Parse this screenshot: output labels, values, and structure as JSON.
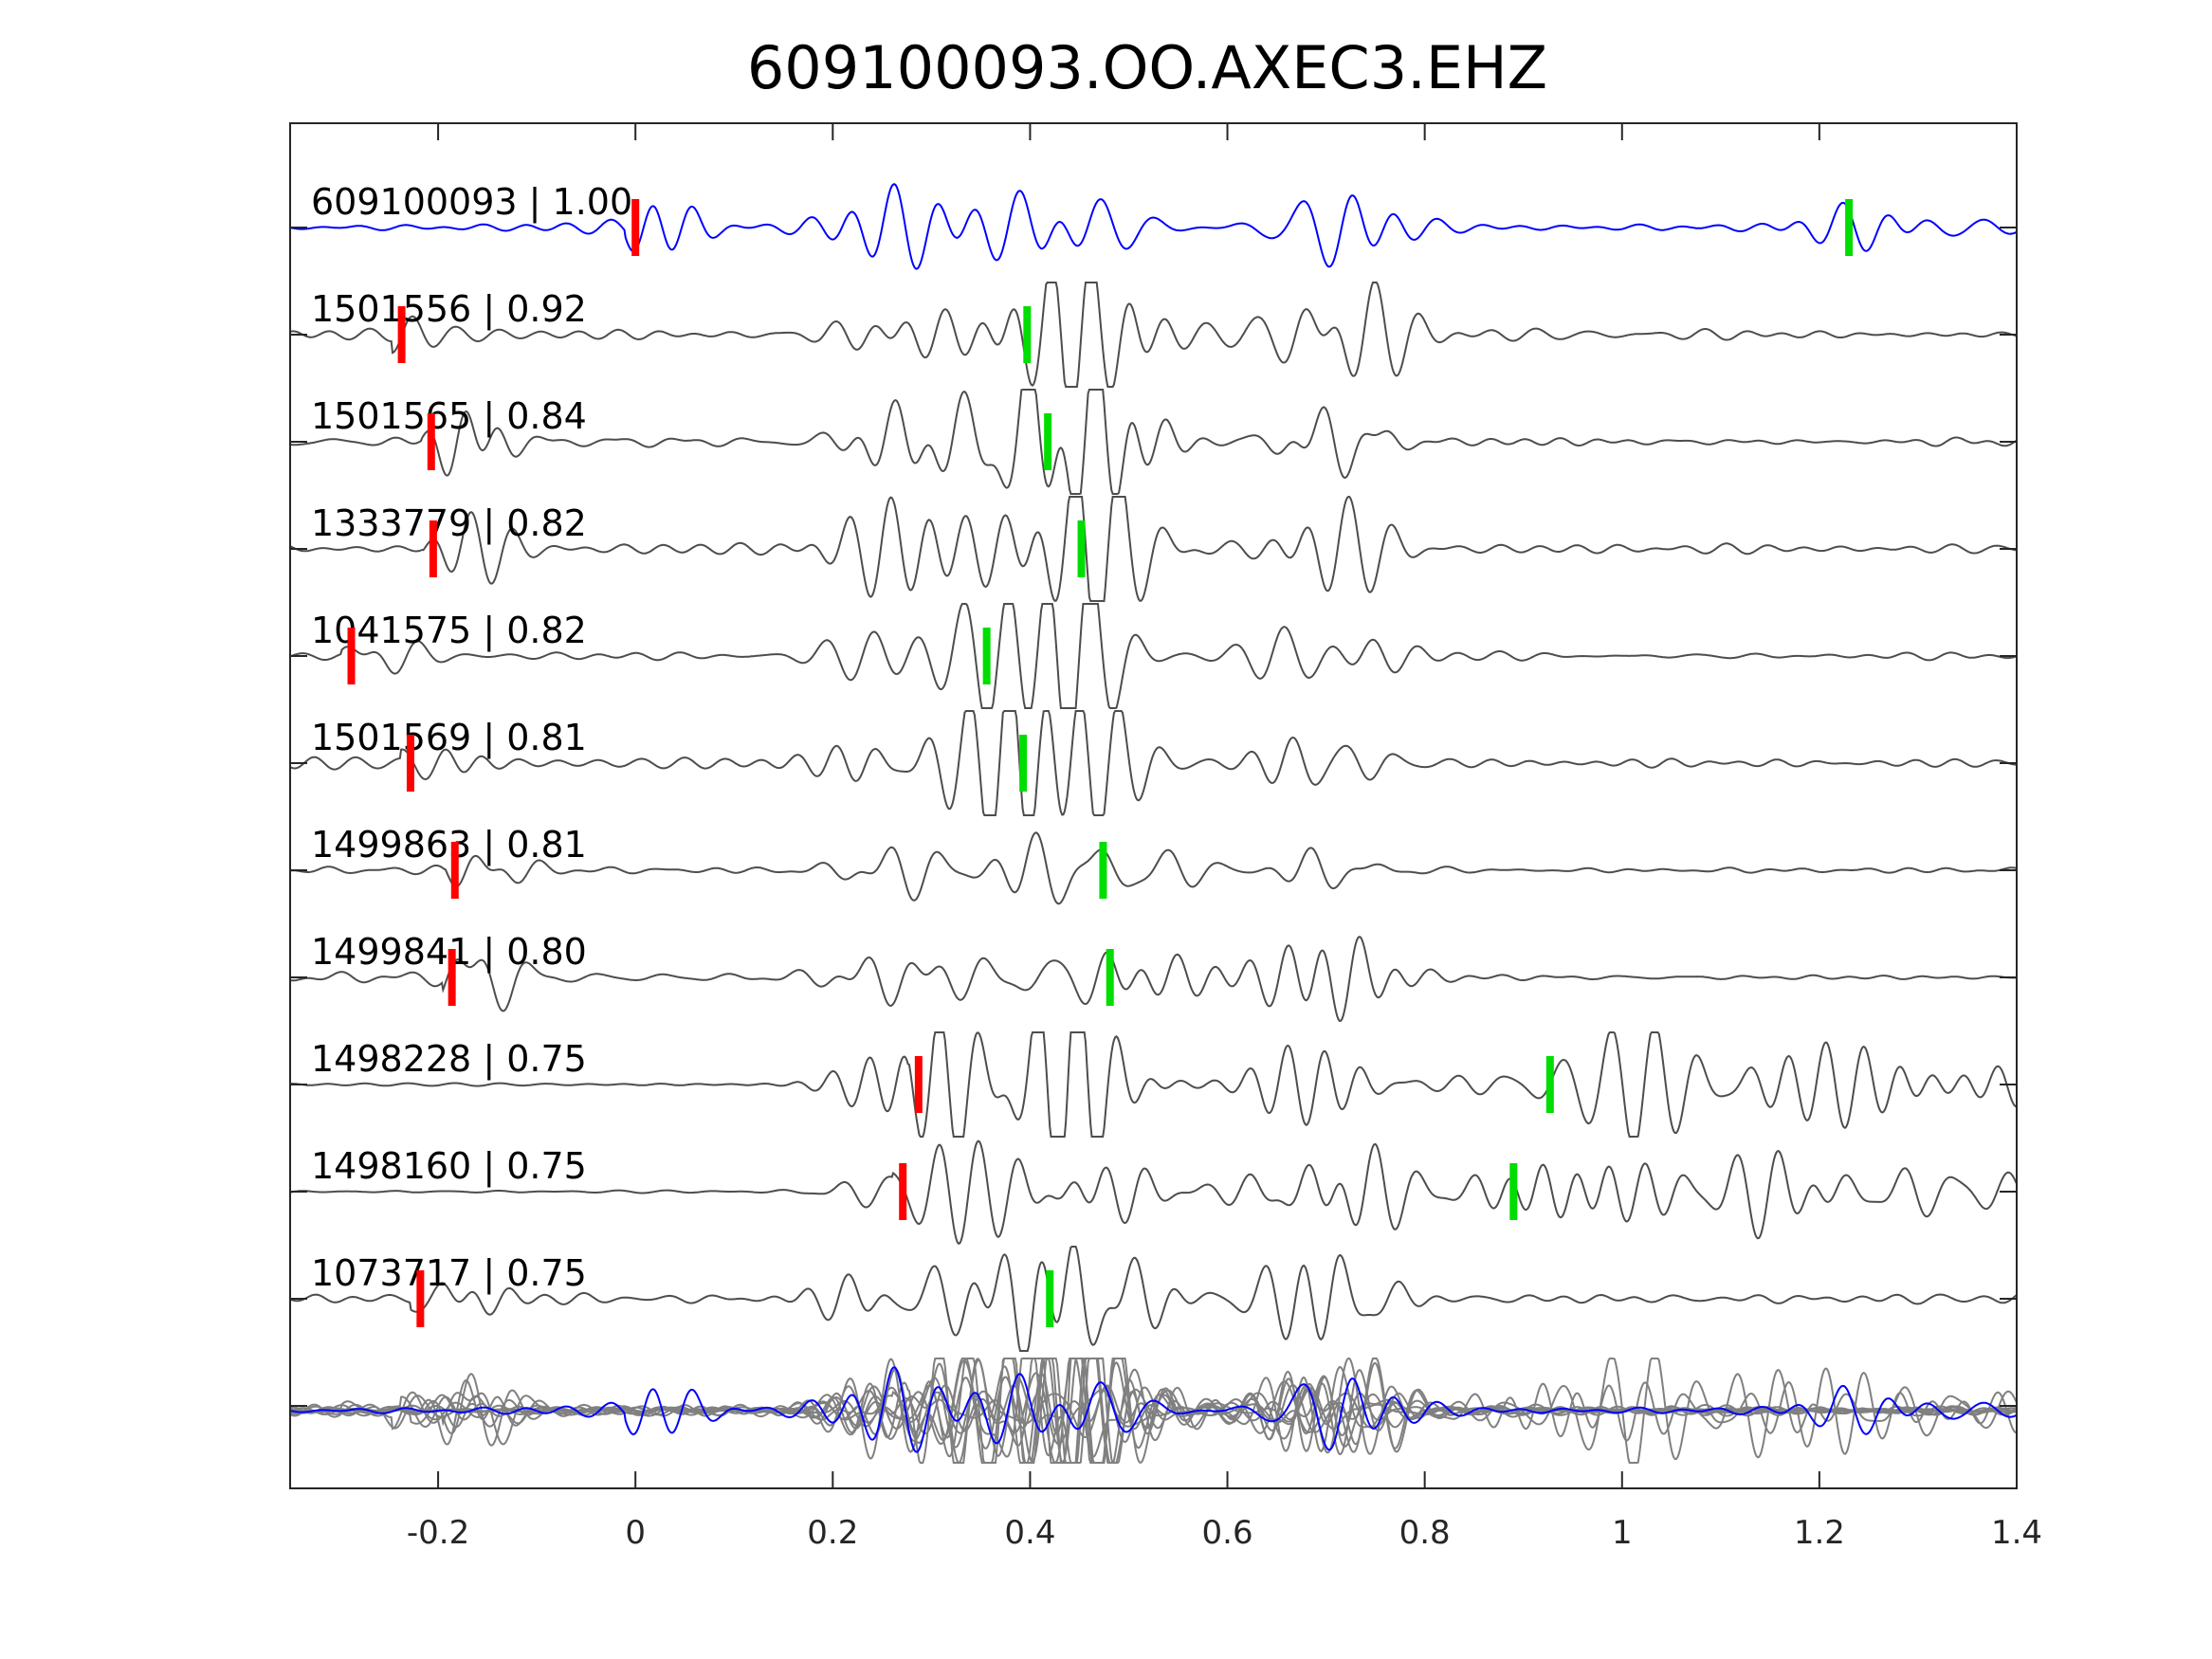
{
  "chart_data": {
    "type": "line",
    "title": "609100093.OO.AXEC3.EHZ",
    "xlabel": "",
    "ylabel": "",
    "xlim": [
      -0.35,
      1.4
    ],
    "xticks": [
      {
        "value": -0.2,
        "label": "-0.2"
      },
      {
        "value": 0,
        "label": "0"
      },
      {
        "value": 0.2,
        "label": "0.2"
      },
      {
        "value": 0.4,
        "label": "0.4"
      },
      {
        "value": 0.6,
        "label": "0.6"
      },
      {
        "value": 0.8,
        "label": "0.8"
      },
      {
        "value": 1,
        "label": "1"
      },
      {
        "value": 1.2,
        "label": "1.2"
      },
      {
        "value": 1.4,
        "label": "1.4"
      }
    ],
    "grid": false,
    "colors": {
      "template": "#0000ff",
      "trace": "#4d4d4d",
      "stack": "#808080",
      "p_pick": "#ff0000",
      "s_pick": "#00dd00"
    },
    "traces": [
      {
        "id": "609100093",
        "cc": "1.00",
        "label": "609100093 | 1.00",
        "p_pick": 0.0,
        "s_pick": 1.23,
        "template": true
      },
      {
        "id": "1501556",
        "cc": "0.92",
        "label": "1501556 | 0.92",
        "p_pick": -0.237,
        "s_pick": 0.397
      },
      {
        "id": "1501565",
        "cc": "0.84",
        "label": "1501565 | 0.84",
        "p_pick": -0.207,
        "s_pick": 0.418
      },
      {
        "id": "1333779",
        "cc": "0.82",
        "label": "1333779 | 0.82",
        "p_pick": -0.205,
        "s_pick": 0.452
      },
      {
        "id": "1041575",
        "cc": "0.82",
        "label": "1041575 | 0.82",
        "p_pick": -0.288,
        "s_pick": 0.356
      },
      {
        "id": "1501569",
        "cc": "0.81",
        "label": "1501569 | 0.81",
        "p_pick": -0.228,
        "s_pick": 0.393
      },
      {
        "id": "1499863",
        "cc": "0.81",
        "label": "1499863 | 0.81",
        "p_pick": -0.183,
        "s_pick": 0.474
      },
      {
        "id": "1499841",
        "cc": "0.80",
        "label": "1499841 | 0.80",
        "p_pick": -0.186,
        "s_pick": 0.481
      },
      {
        "id": "1498228",
        "cc": "0.75",
        "label": "1498228 | 0.75",
        "p_pick": 0.287,
        "s_pick": 0.927
      },
      {
        "id": "1498160",
        "cc": "0.75",
        "label": "1498160 | 0.75",
        "p_pick": 0.271,
        "s_pick": 0.89
      },
      {
        "id": "1073717",
        "cc": "0.75",
        "label": "1073717 | 0.75",
        "p_pick": -0.218,
        "s_pick": 0.42
      }
    ],
    "stack": {
      "overlay_of_all_traces": true
    }
  }
}
